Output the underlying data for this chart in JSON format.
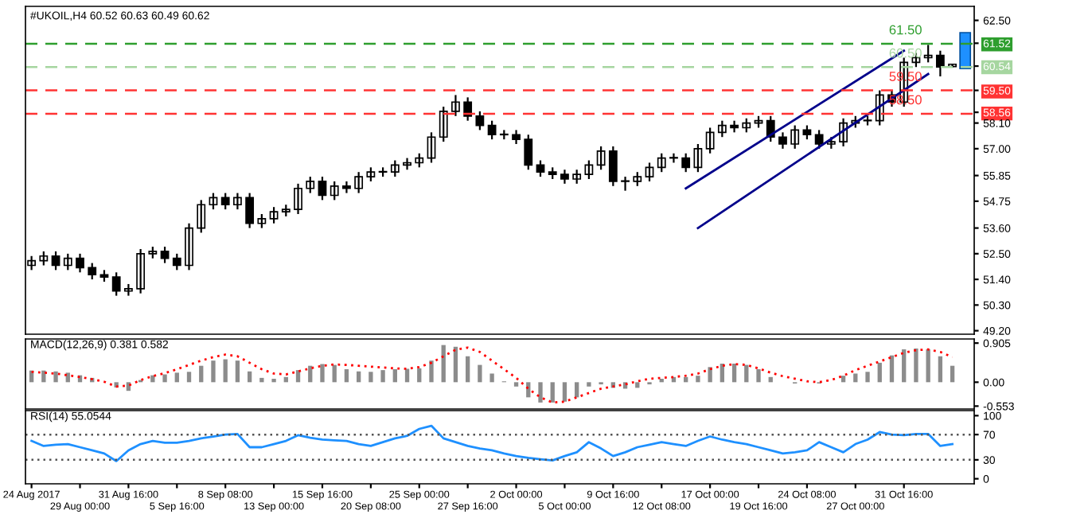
{
  "chart_data": [
    {
      "type": "candlestick",
      "title": "#UKOIL,H4 60.52 60.63 60.49 60.62",
      "categories": [
        null,
        null,
        null,
        null,
        null,
        null,
        null,
        null,
        null,
        null,
        null,
        null,
        null,
        null,
        null,
        null,
        null,
        null,
        null,
        null,
        null,
        null,
        null,
        null,
        null,
        null,
        null,
        null,
        null,
        null,
        null,
        null,
        null,
        null,
        null,
        null,
        null,
        null,
        null,
        null,
        null,
        null,
        null,
        null,
        null,
        null,
        null,
        null,
        null,
        null,
        null,
        null,
        null,
        null,
        null,
        null,
        null,
        null,
        null,
        null,
        null,
        null,
        null,
        null,
        null,
        null,
        null,
        null,
        null,
        null,
        null,
        null,
        null,
        null,
        null,
        null,
        null
      ],
      "series": [
        {
          "type": "candlestick",
          "color": "#000000",
          "ohlc": [
            [
              52.0,
              52.4,
              51.8,
              52.2
            ],
            [
              52.2,
              52.6,
              52.0,
              52.4
            ],
            [
              52.4,
              52.6,
              51.8,
              52.0
            ],
            [
              52.0,
              52.5,
              51.8,
              52.3
            ],
            [
              52.3,
              52.5,
              51.7,
              51.9
            ],
            [
              51.9,
              52.1,
              51.4,
              51.6
            ],
            [
              51.6,
              51.8,
              51.3,
              51.5
            ],
            [
              51.5,
              51.7,
              50.7,
              50.9
            ],
            [
              50.9,
              51.2,
              50.7,
              51.0
            ],
            [
              51.0,
              52.7,
              50.8,
              52.5
            ],
            [
              52.5,
              52.8,
              52.3,
              52.6
            ],
            [
              52.6,
              52.8,
              52.1,
              52.3
            ],
            [
              52.3,
              52.5,
              51.8,
              52.0
            ],
            [
              52.0,
              53.8,
              51.8,
              53.6
            ],
            [
              53.6,
              54.8,
              53.4,
              54.6
            ],
            [
              54.6,
              55.1,
              54.4,
              54.9
            ],
            [
              54.9,
              55.1,
              54.4,
              54.6
            ],
            [
              54.6,
              55.1,
              54.4,
              54.9
            ],
            [
              54.9,
              55.1,
              53.6,
              53.8
            ],
            [
              53.8,
              54.2,
              53.6,
              54.0
            ],
            [
              54.0,
              54.5,
              53.8,
              54.3
            ],
            [
              54.3,
              54.6,
              54.1,
              54.4
            ],
            [
              54.4,
              55.5,
              54.2,
              55.3
            ],
            [
              55.3,
              55.8,
              55.1,
              55.6
            ],
            [
              55.6,
              55.8,
              54.8,
              55.0
            ],
            [
              55.0,
              55.6,
              54.8,
              55.4
            ],
            [
              55.4,
              55.6,
              55.1,
              55.3
            ],
            [
              55.3,
              56.0,
              55.1,
              55.8
            ],
            [
              55.8,
              56.2,
              55.6,
              56.0
            ],
            [
              56.0,
              56.2,
              55.8,
              56.0
            ],
            [
              56.0,
              56.5,
              55.8,
              56.3
            ],
            [
              56.3,
              56.6,
              56.1,
              56.4
            ],
            [
              56.4,
              56.8,
              56.2,
              56.6
            ],
            [
              56.6,
              57.7,
              56.4,
              57.5
            ],
            [
              57.5,
              58.8,
              57.3,
              58.6
            ],
            [
              58.6,
              59.3,
              58.4,
              59.0
            ],
            [
              59.0,
              59.2,
              58.2,
              58.4
            ],
            [
              58.4,
              58.6,
              57.8,
              58.0
            ],
            [
              58.0,
              58.2,
              57.4,
              57.6
            ],
            [
              57.6,
              57.8,
              57.4,
              57.6
            ],
            [
              57.6,
              57.8,
              57.2,
              57.4
            ],
            [
              57.4,
              57.6,
              56.1,
              56.3
            ],
            [
              56.3,
              56.5,
              55.8,
              56.0
            ],
            [
              56.0,
              56.2,
              55.7,
              55.9
            ],
            [
              55.9,
              56.1,
              55.5,
              55.7
            ],
            [
              55.7,
              56.1,
              55.5,
              55.9
            ],
            [
              55.9,
              56.5,
              55.7,
              56.3
            ],
            [
              56.3,
              57.1,
              56.1,
              56.9
            ],
            [
              56.9,
              57.1,
              55.4,
              55.6
            ],
            [
              55.6,
              55.8,
              55.2,
              55.6
            ],
            [
              55.6,
              56.0,
              55.4,
              55.8
            ],
            [
              55.8,
              56.4,
              55.6,
              56.2
            ],
            [
              56.2,
              56.8,
              56.0,
              56.6
            ],
            [
              56.6,
              56.8,
              56.4,
              56.6
            ],
            [
              56.6,
              56.8,
              56.0,
              56.2
            ],
            [
              56.2,
              57.2,
              56.0,
              57.0
            ],
            [
              57.0,
              57.9,
              56.8,
              57.7
            ],
            [
              57.7,
              58.2,
              57.5,
              58.0
            ],
            [
              58.0,
              58.2,
              57.7,
              57.9
            ],
            [
              57.9,
              58.3,
              57.7,
              58.1
            ],
            [
              58.1,
              58.4,
              57.9,
              58.2
            ],
            [
              58.2,
              58.4,
              57.3,
              57.5
            ],
            [
              57.5,
              57.7,
              57.0,
              57.2
            ],
            [
              57.2,
              58.0,
              57.0,
              57.8
            ],
            [
              57.8,
              58.0,
              57.4,
              57.6
            ],
            [
              57.6,
              57.8,
              57.0,
              57.2
            ],
            [
              57.2,
              57.5,
              57.0,
              57.3
            ],
            [
              57.3,
              58.3,
              57.1,
              58.1
            ],
            [
              58.1,
              58.4,
              57.9,
              58.2
            ],
            [
              58.2,
              58.4,
              58.0,
              58.2
            ],
            [
              58.2,
              59.5,
              58.0,
              59.3
            ],
            [
              59.3,
              59.5,
              58.8,
              59.0
            ],
            [
              59.0,
              60.9,
              58.8,
              60.7
            ],
            [
              60.7,
              61.1,
              60.5,
              60.9
            ],
            [
              60.9,
              61.45,
              60.7,
              61.0
            ],
            [
              61.0,
              61.2,
              60.1,
              60.5
            ],
            [
              60.52,
              60.63,
              60.49,
              60.62
            ]
          ]
        },
        {
          "type": "line",
          "color": "#00008b",
          "values": [
            null,
            null,
            null,
            null,
            null,
            null,
            null,
            null,
            null,
            null,
            null,
            null,
            null,
            null,
            null,
            null,
            null,
            null,
            null,
            null,
            null,
            null,
            null,
            null,
            null,
            null,
            null,
            null,
            null,
            null,
            null,
            null,
            null,
            null,
            null,
            null,
            null,
            null,
            null,
            null,
            null,
            null,
            null,
            null,
            null,
            null,
            null,
            null,
            null,
            null,
            null,
            null,
            null,
            null,
            55.3,
            null,
            null,
            null,
            null,
            null,
            null,
            null,
            null,
            null,
            null,
            null,
            null,
            null,
            null,
            null,
            null,
            null,
            61.2,
            null,
            null,
            null,
            null
          ]
        },
        {
          "type": "line",
          "color": "#00008b",
          "values": [
            null,
            null,
            null,
            null,
            null,
            null,
            null,
            null,
            null,
            null,
            null,
            null,
            null,
            null,
            null,
            null,
            null,
            null,
            null,
            null,
            null,
            null,
            null,
            null,
            null,
            null,
            null,
            null,
            null,
            null,
            null,
            null,
            null,
            null,
            null,
            null,
            null,
            null,
            null,
            null,
            null,
            null,
            null,
            null,
            null,
            null,
            null,
            null,
            null,
            null,
            null,
            null,
            null,
            null,
            null,
            53.6,
            null,
            null,
            null,
            null,
            null,
            null,
            null,
            null,
            null,
            null,
            null,
            null,
            null,
            null,
            null,
            null,
            null,
            null,
            60.2,
            null,
            null
          ]
        }
      ],
      "ref_lines": [
        {
          "axis": "y",
          "value": 61.5,
          "label": "61.50",
          "color": "#2e9e2e",
          "line_style": "dashed"
        },
        {
          "axis": "y",
          "value": 60.5,
          "label": "60.50",
          "color": "#a6d6a0",
          "line_style": "dashed"
        },
        {
          "axis": "y",
          "value": 59.5,
          "label": "59.50",
          "color": "#ff3333",
          "line_style": "dashed"
        },
        {
          "axis": "y",
          "value": 58.5,
          "label": "58.50",
          "color": "#ff3333",
          "line_style": "dashed"
        }
      ],
      "ylim": [
        49.05,
        63.1
      ],
      "yticks": [
        {
          "value": 62.5,
          "label": "62.50"
        },
        {
          "value": 61.52,
          "label": "61.52"
        },
        {
          "value": 60.54,
          "label": "60.54"
        },
        {
          "value": 59.5,
          "label": "59.50"
        },
        {
          "value": 58.56,
          "label": "58.56"
        },
        {
          "value": 58.1,
          "label": "58.10"
        },
        {
          "value": 57.0,
          "label": "57.00"
        },
        55.85,
        54.75,
        {
          "value": 53.6,
          "label": "53.60"
        },
        {
          "value": 52.5,
          "label": "52.50"
        },
        {
          "value": 51.4,
          "label": "51.40"
        },
        {
          "value": 50.3,
          "label": "50.30"
        },
        {
          "value": 49.2,
          "label": "49.20"
        }
      ],
      "grid": false
    },
    {
      "type": "bar",
      "title": "MACD(12,26,9) 0.381 0.582",
      "categories": [
        null,
        null,
        null,
        null,
        null,
        null,
        null,
        null,
        null,
        null,
        null,
        null,
        null,
        null,
        null,
        null,
        null,
        null,
        null,
        null,
        null,
        null,
        null,
        null,
        null,
        null,
        null,
        null,
        null,
        null,
        null,
        null,
        null,
        null,
        null,
        null,
        null,
        null,
        null,
        null,
        null,
        null,
        null,
        null,
        null,
        null,
        null,
        null,
        null,
        null,
        null,
        null,
        null,
        null,
        null,
        null,
        null,
        null,
        null,
        null,
        null,
        null,
        null,
        null,
        null,
        null,
        null,
        null,
        null,
        null,
        null,
        null,
        null,
        null,
        null,
        null,
        null
      ],
      "series": [
        {
          "type": "bar",
          "color": "#8c8c8c",
          "values": [
            0.27,
            0.27,
            0.25,
            0.22,
            0.16,
            0.1,
            null,
            -0.12,
            -0.2,
            0.05,
            0.16,
            0.18,
            0.22,
            0.24,
            0.38,
            0.5,
            0.53,
            0.5,
            0.25,
            0.1,
            0.08,
            0.12,
            0.28,
            0.38,
            0.42,
            0.4,
            0.3,
            0.25,
            0.24,
            0.28,
            0.3,
            0.31,
            0.32,
            0.5,
            0.86,
            0.82,
            0.6,
            0.4,
            0.2,
            0.02,
            -0.1,
            -0.35,
            -0.47,
            -0.47,
            -0.45,
            -0.35,
            -0.1,
            -0.05,
            -0.13,
            -0.15,
            -0.13,
            -0.05,
            0.08,
            0.12,
            0.12,
            0.15,
            0.35,
            0.43,
            0.43,
            0.4,
            0.3,
            0.12,
            0.0,
            -0.03,
            null,
            -0.03,
            0.0,
            0.15,
            0.2,
            0.24,
            0.45,
            0.62,
            0.76,
            0.78,
            0.76,
            0.6,
            0.38
          ]
        },
        {
          "type": "line",
          "color": "#ff0000",
          "line_style": "dotted",
          "values": [
            0.24,
            0.22,
            0.2,
            0.16,
            0.12,
            0.07,
            0.01,
            -0.1,
            -0.08,
            0.05,
            0.14,
            0.21,
            0.3,
            0.4,
            0.5,
            0.58,
            0.64,
            0.6,
            0.45,
            0.3,
            0.2,
            0.18,
            0.25,
            0.32,
            0.38,
            0.41,
            0.4,
            0.38,
            0.36,
            0.34,
            0.32,
            0.31,
            0.35,
            0.45,
            0.6,
            0.75,
            0.8,
            0.7,
            0.5,
            0.3,
            0.1,
            -0.15,
            -0.35,
            -0.47,
            -0.45,
            -0.35,
            -0.25,
            -0.15,
            -0.1,
            -0.05,
            0.02,
            0.08,
            0.1,
            0.12,
            0.15,
            0.2,
            0.3,
            0.38,
            0.42,
            0.4,
            0.32,
            0.22,
            0.14,
            0.08,
            0.02,
            0.0,
            0.05,
            0.15,
            0.28,
            0.38,
            0.48,
            0.58,
            0.68,
            0.74,
            0.76,
            0.7,
            0.58
          ]
        }
      ],
      "ylim": [
        -0.62,
        1.0
      ],
      "yticks": [
        {
          "value": 0.905,
          "label": "0.905"
        },
        {
          "value": 0,
          "label": "0.00"
        },
        {
          "value": -0.553,
          "label": "-0.553"
        }
      ],
      "grid": false
    },
    {
      "type": "line",
      "title": "RSI(14) 55.0544",
      "categories": [
        "24 Aug 2017",
        null,
        null,
        null,
        "29 Aug 00:00",
        null,
        null,
        null,
        "31 Aug 16:00",
        null,
        null,
        null,
        "5 Sep 16:00",
        null,
        null,
        null,
        "8 Sep 08:00",
        null,
        null,
        null,
        "13 Sep 00:00",
        null,
        null,
        null,
        "15 Sep 16:00",
        null,
        null,
        null,
        "20 Sep 08:00",
        null,
        null,
        null,
        "25 Sep 00:00",
        null,
        null,
        null,
        "27 Sep 16:00",
        null,
        null,
        null,
        "2 Oct 00:00",
        null,
        null,
        null,
        "5 Oct 00:00",
        null,
        null,
        null,
        "9 Oct 16:00",
        null,
        null,
        null,
        "12 Oct 08:00",
        null,
        null,
        null,
        "17 Oct 00:00",
        null,
        null,
        null,
        "19 Oct 16:00",
        null,
        null,
        null,
        "24 Oct 08:00",
        null,
        null,
        null,
        "27 Oct 00:00",
        null,
        null,
        null,
        "31 Oct 16:00",
        null,
        null,
        null,
        null
      ],
      "series": [
        {
          "color": "#1e90ff",
          "values": [
            60,
            52,
            54,
            55,
            50,
            45,
            40,
            28,
            45,
            55,
            60,
            57,
            57,
            60,
            64,
            67,
            70,
            71,
            50,
            50,
            55,
            60,
            69,
            65,
            62,
            61,
            60,
            55,
            52,
            58,
            64,
            68,
            79,
            84,
            64,
            58,
            52,
            48,
            45,
            40,
            36,
            33,
            31,
            29,
            36,
            42,
            58,
            48,
            36,
            42,
            50,
            54,
            58,
            55,
            52,
            60,
            67,
            62,
            58,
            55,
            50,
            45,
            40,
            42,
            45,
            58,
            50,
            42,
            55,
            62,
            74,
            70,
            69,
            71,
            71,
            52,
            55
          ]
        }
      ],
      "ref_lines": [
        {
          "axis": "y",
          "value": 70,
          "color": "#555555",
          "line_style": "dotted"
        },
        {
          "axis": "y",
          "value": 30,
          "color": "#555555",
          "line_style": "dotted"
        }
      ],
      "ylim": [
        -8,
        108
      ],
      "yticks": [
        100,
        70,
        30,
        0
      ],
      "grid": false
    }
  ]
}
